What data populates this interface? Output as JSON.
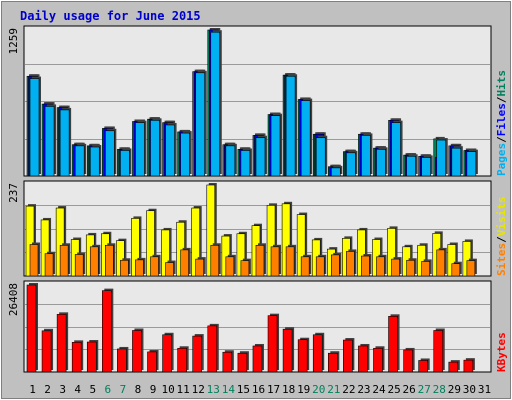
{
  "title": "Daily usage for June 2015",
  "colors": {
    "background": "#c0c0c0",
    "panel": "#e8e8e8",
    "grid": "#9a9a9a",
    "hits": "#00805c",
    "files": "#0000ff",
    "pages": "#00b0f0",
    "visits": "#ffff00",
    "sites": "#ff8000",
    "kbytes": "#ff0000",
    "weekday": "#000000",
    "weekend": "#00805c"
  },
  "legend": {
    "top": [
      {
        "label": "Hits",
        "color": "#00805c"
      },
      {
        "label": "/",
        "color": "#000000"
      },
      {
        "label": "Files",
        "color": "#0000ff"
      },
      {
        "label": "/",
        "color": "#000000"
      },
      {
        "label": "Pages",
        "color": "#00b0f0"
      }
    ],
    "mid": [
      {
        "label": "Visits",
        "color": "#e6e600"
      },
      {
        "label": "/",
        "color": "#000000"
      },
      {
        "label": "Sites",
        "color": "#ff8000"
      }
    ],
    "bottom": [
      {
        "label": "KBytes",
        "color": "#ff0000"
      }
    ]
  },
  "chart_data": [
    {
      "type": "bar",
      "name": "hits-files-pages",
      "ymax_label": "1259",
      "ylim": [
        0,
        1259
      ],
      "categories": [
        "1",
        "2",
        "3",
        "4",
        "5",
        "6",
        "7",
        "8",
        "9",
        "10",
        "11",
        "12",
        "13",
        "14",
        "15",
        "16",
        "17",
        "18",
        "19",
        "20",
        "21",
        "22",
        "23",
        "24",
        "25",
        "26",
        "27",
        "28",
        "29",
        "30",
        "31"
      ],
      "weekend_days": [
        "6",
        "7",
        "13",
        "14",
        "20",
        "21",
        "27",
        "28"
      ],
      "series": [
        {
          "name": "Hits",
          "values": [
            860,
            620,
            590,
            270,
            260,
            410,
            230,
            470,
            490,
            460,
            380,
            900,
            1259,
            270,
            230,
            350,
            530,
            870,
            660,
            360,
            80,
            210,
            360,
            240,
            480,
            180,
            170,
            320,
            260,
            220,
            0
          ]
        },
        {
          "name": "Files",
          "values": [
            860,
            620,
            590,
            270,
            260,
            410,
            230,
            470,
            490,
            460,
            380,
            900,
            1259,
            270,
            230,
            350,
            530,
            870,
            660,
            360,
            80,
            210,
            360,
            240,
            480,
            180,
            170,
            160,
            260,
            220,
            0
          ]
        },
        {
          "name": "Pages",
          "values": [
            840,
            600,
            570,
            260,
            250,
            390,
            220,
            460,
            480,
            440,
            370,
            890,
            1240,
            260,
            220,
            330,
            520,
            860,
            650,
            330,
            70,
            200,
            350,
            230,
            460,
            170,
            160,
            310,
            240,
            210,
            0
          ]
        }
      ]
    },
    {
      "type": "bar",
      "name": "visits-sites",
      "ymax_label": "237",
      "ylim": [
        0,
        237
      ],
      "series": [
        {
          "name": "Visits",
          "values": [
            182,
            146,
            177,
            95,
            107,
            110,
            92,
            150,
            170,
            120,
            140,
            177,
            237,
            104,
            110,
            131,
            184,
            188,
            160,
            94,
            70,
            98,
            120,
            95,
            124,
            76,
            80,
            111,
            82,
            90,
            0
          ]
        },
        {
          "name": "Sites",
          "values": [
            82,
            58,
            80,
            56,
            76,
            80,
            41,
            42,
            50,
            35,
            68,
            44,
            80,
            50,
            40,
            80,
            76,
            76,
            50,
            50,
            55,
            64,
            52,
            50,
            44,
            41,
            38,
            68,
            32,
            40,
            0
          ]
        }
      ]
    },
    {
      "type": "bar",
      "name": "kbytes",
      "ymax_label": "26408",
      "ylim": [
        0,
        26408
      ],
      "series": [
        {
          "name": "KBytes",
          "values": [
            26408,
            12500,
            17500,
            9000,
            9100,
            24700,
            7000,
            12600,
            6100,
            11300,
            7200,
            10900,
            14000,
            6000,
            5700,
            7900,
            17100,
            13000,
            9800,
            11300,
            5700,
            9700,
            7900,
            7200,
            16900,
            6700,
            3500,
            12600,
            3000,
            3600,
            0
          ]
        }
      ]
    }
  ]
}
